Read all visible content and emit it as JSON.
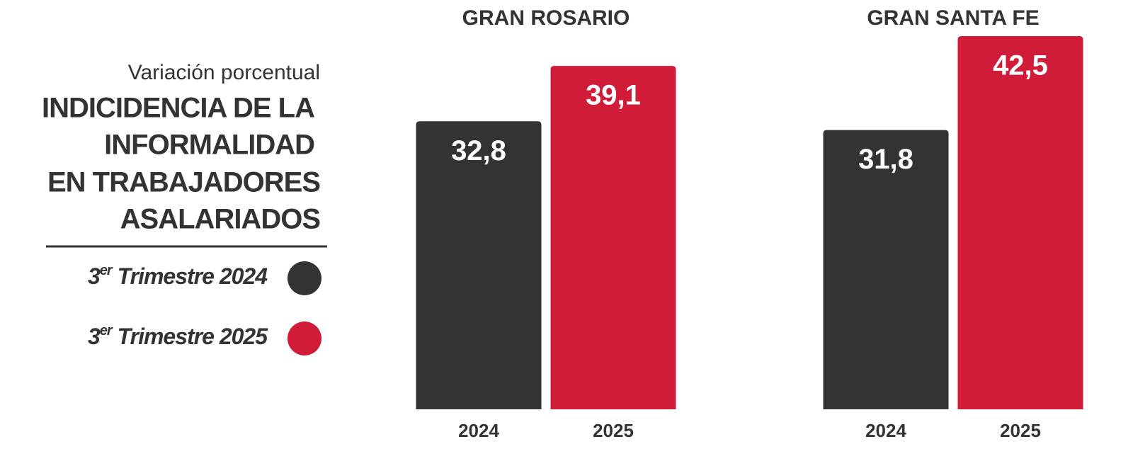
{
  "header": {
    "subtitle": "Variación porcentual",
    "title_lines": [
      "INDICIDENCIA DE LA",
      "INFORMALIDAD",
      "EN TRABAJADORES",
      "ASALARIADOS"
    ]
  },
  "legend": [
    {
      "ordinal": "3",
      "ordinal_suffix": "er",
      "text": "Trimestre 2024",
      "color": "#333333"
    },
    {
      "ordinal": "3",
      "ordinal_suffix": "er",
      "text": "Trimestre 2025",
      "color": "#d01b39"
    }
  ],
  "chart_data": [
    {
      "type": "bar",
      "title": "GRAN ROSARIO",
      "categories": [
        "2024",
        "2025"
      ],
      "values": [
        32.8,
        39.1
      ],
      "value_labels": [
        "32,8",
        "39,1"
      ],
      "colors": [
        "#333333",
        "#d01b39"
      ],
      "ylim": [
        0,
        45
      ]
    },
    {
      "type": "bar",
      "title": "GRAN SANTA FE",
      "categories": [
        "2024",
        "2025"
      ],
      "values": [
        31.8,
        42.5
      ],
      "value_labels": [
        "31,8",
        "42,5"
      ],
      "colors": [
        "#333333",
        "#d01b39"
      ],
      "ylim": [
        0,
        45
      ]
    }
  ]
}
